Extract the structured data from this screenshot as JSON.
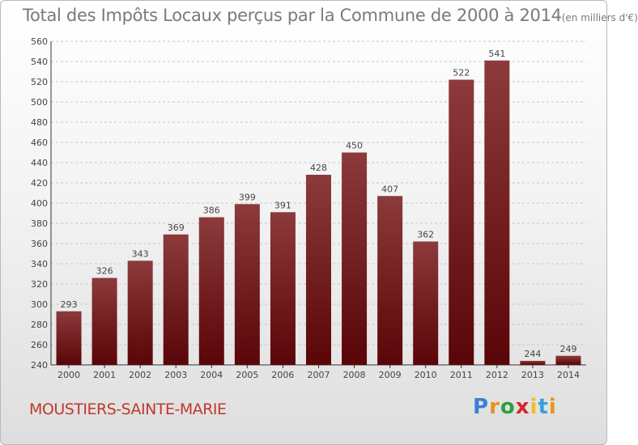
{
  "header": {
    "title": "Total des Impôts Locaux perçus par la Commune de 2000 à 2014",
    "unit": "(en milliers d'€)"
  },
  "footer": {
    "commune": "MOUSTIERS-SAINTE-MARIE",
    "logo": [
      "P",
      "r",
      "o",
      "x",
      "i",
      "t",
      "i"
    ],
    "logo_colors": [
      "#3a7fd5",
      "#e8931a",
      "#2e9e3e",
      "#d8262e",
      "#f0c020",
      "#3aa0dd",
      "#e8931a"
    ]
  },
  "colors": {
    "bar_top": "#8c3a3c",
    "bar_bottom": "#5a0508",
    "grid": "#c8c8c8",
    "title": "#7a7a7a",
    "commune": "#c0392b"
  },
  "chart_data": {
    "type": "bar",
    "title": "Total des Impôts Locaux perçus par la Commune de 2000 à 2014 (en milliers d'€)",
    "xlabel": "",
    "ylabel": "",
    "categories": [
      "2000",
      "2001",
      "2002",
      "2003",
      "2004",
      "2005",
      "2006",
      "2007",
      "2008",
      "2009",
      "2010",
      "2011",
      "2012",
      "2013",
      "2014"
    ],
    "values": [
      293,
      326,
      343,
      369,
      386,
      399,
      391,
      428,
      450,
      407,
      362,
      522,
      541,
      244,
      249
    ],
    "ylim": [
      240,
      560
    ],
    "yticks": [
      240,
      260,
      280,
      300,
      320,
      340,
      360,
      380,
      400,
      420,
      440,
      460,
      480,
      500,
      520,
      540,
      560
    ],
    "grid": true
  }
}
